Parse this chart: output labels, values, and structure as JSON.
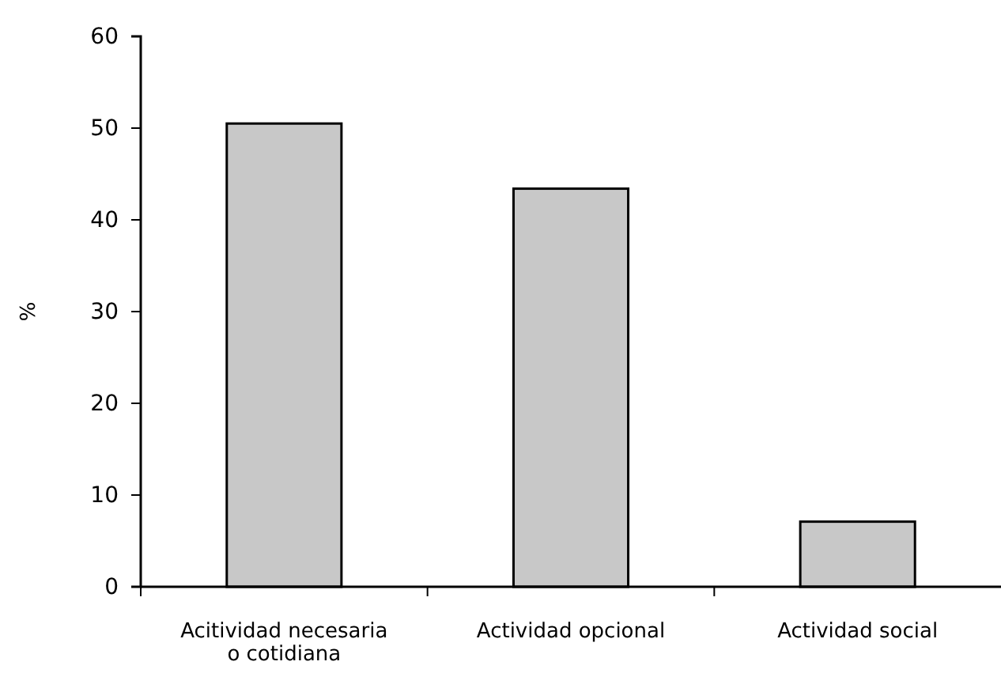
{
  "chart_data": {
    "type": "bar",
    "ylabel": "%",
    "categories": [
      "Acitividad necesaria o cotidiana",
      "Actividad opcional",
      "Actividad social"
    ],
    "values": [
      50.5,
      43.4,
      7.1
    ],
    "color": "#c8c8c8",
    "ylim": [
      0,
      60
    ],
    "yticks": [
      0,
      10,
      20,
      30,
      40,
      50,
      60
    ],
    "grid": false
  }
}
